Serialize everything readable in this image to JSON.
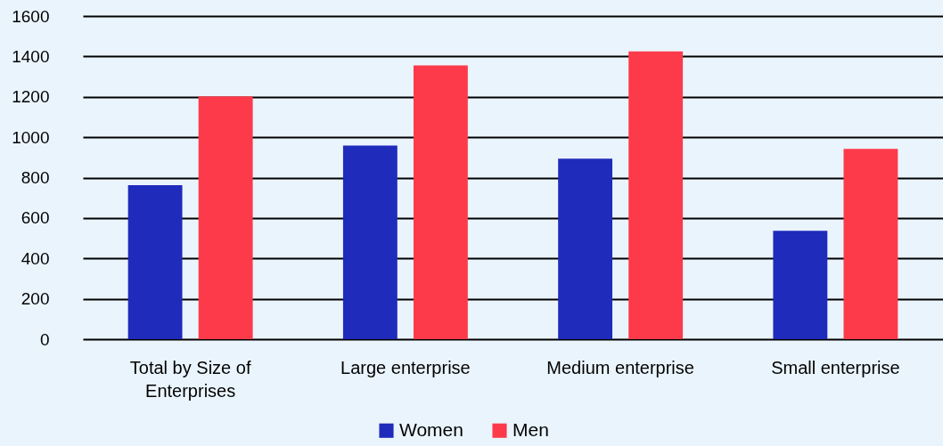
{
  "chart_data": {
    "type": "bar",
    "categories": [
      "Total by Size of Enterprises",
      "Large enterprise",
      "Medium enterprise",
      "Small enterprise"
    ],
    "series": [
      {
        "name": "Women",
        "color": "#1f2bbb",
        "values": [
          762,
          959,
          894,
          537
        ]
      },
      {
        "name": "Men",
        "color": "#fd3a4a",
        "values": [
          1202,
          1355,
          1425,
          942
        ]
      }
    ],
    "ylim": [
      0,
      1600
    ],
    "yticks": [
      0,
      200,
      400,
      600,
      800,
      1000,
      1200,
      1400,
      1600
    ],
    "grid": "y",
    "legend": "bottom"
  }
}
